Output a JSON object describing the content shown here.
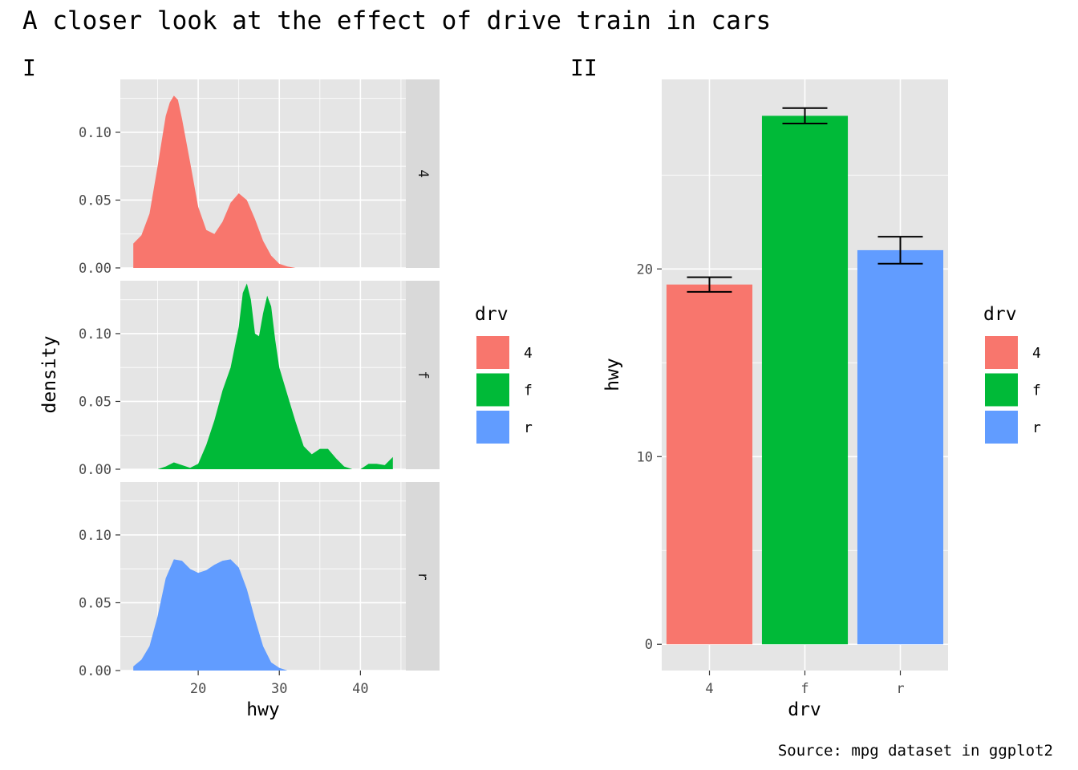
{
  "title": "A closer look at the effect of drive train in cars",
  "caption": "Source: mpg dataset in ggplot2",
  "colors": {
    "4": "#F8766D",
    "f": "#00BA38",
    "r": "#619CFF"
  },
  "chart_data": [
    {
      "tag": "I",
      "type": "area",
      "subtype": "density",
      "xlabel": "hwy",
      "ylabel": "density",
      "xlim": [
        10.4,
        45.6
      ],
      "ylim": [
        0,
        0.139
      ],
      "x_ticks": [
        "20",
        "30",
        "40"
      ],
      "y_ticks": [
        "0.00",
        "0.05",
        "0.10"
      ],
      "grid": true,
      "facets": [
        {
          "strip": "4",
          "x": [
            12,
            13,
            14,
            15,
            16,
            16.5,
            17,
            17.5,
            18,
            19,
            20,
            21,
            22,
            23,
            24,
            25,
            26,
            27,
            28,
            29,
            30,
            31,
            32,
            33,
            34,
            35,
            36,
            38,
            40,
            42,
            44
          ],
          "y": [
            0.018,
            0.024,
            0.04,
            0.075,
            0.112,
            0.122,
            0.127,
            0.124,
            0.11,
            0.078,
            0.045,
            0.028,
            0.025,
            0.034,
            0.048,
            0.055,
            0.05,
            0.036,
            0.02,
            0.009,
            0.003,
            0.001,
            0.0,
            0.0,
            0.0,
            0.0,
            0.0,
            0.0,
            0.0,
            0.0,
            0.0
          ]
        },
        {
          "strip": "f",
          "x": [
            15,
            16,
            17,
            18,
            19,
            20,
            21,
            22,
            23,
            24,
            25,
            25.5,
            26,
            26.5,
            27,
            27.5,
            28,
            28.5,
            29,
            29.5,
            30,
            31,
            32,
            33,
            34,
            35,
            36,
            37,
            38,
            39,
            40,
            41,
            42,
            43,
            44
          ],
          "y": [
            0.0,
            0.002,
            0.005,
            0.003,
            0.001,
            0.004,
            0.018,
            0.036,
            0.058,
            0.075,
            0.105,
            0.13,
            0.137,
            0.125,
            0.1,
            0.098,
            0.115,
            0.128,
            0.12,
            0.095,
            0.075,
            0.055,
            0.035,
            0.017,
            0.011,
            0.015,
            0.015,
            0.008,
            0.002,
            0.0,
            0.0,
            0.004,
            0.004,
            0.003,
            0.009
          ]
        },
        {
          "strip": "r",
          "x": [
            12,
            13,
            14,
            15,
            16,
            17,
            18,
            19,
            20,
            21,
            22,
            23,
            24,
            25,
            26,
            27,
            28,
            29,
            30,
            31,
            32,
            33,
            34,
            36,
            38,
            40,
            42,
            44
          ],
          "y": [
            0.003,
            0.008,
            0.018,
            0.04,
            0.068,
            0.082,
            0.081,
            0.075,
            0.072,
            0.074,
            0.078,
            0.081,
            0.082,
            0.076,
            0.06,
            0.038,
            0.018,
            0.006,
            0.002,
            0.0,
            0.0,
            0.0,
            0.0,
            0.0,
            0.0,
            0.0,
            0.0,
            0.0
          ]
        }
      ],
      "legend": {
        "title": "drv",
        "items": [
          "4",
          "f",
          "r"
        ],
        "position": "right"
      }
    },
    {
      "tag": "II",
      "type": "bar",
      "xlabel": "drv",
      "ylabel": "hwy",
      "categories": [
        "4",
        "f",
        "r"
      ],
      "values": [
        19.17,
        28.16,
        21.0
      ],
      "error_low": [
        18.78,
        27.75,
        20.28
      ],
      "error_high": [
        19.56,
        28.57,
        21.72
      ],
      "ylim": [
        -1.4,
        30.1
      ],
      "y_ticks": [
        "0",
        "10",
        "20"
      ],
      "grid": true,
      "legend": {
        "title": "drv",
        "items": [
          "4",
          "f",
          "r"
        ],
        "position": "right"
      }
    }
  ]
}
